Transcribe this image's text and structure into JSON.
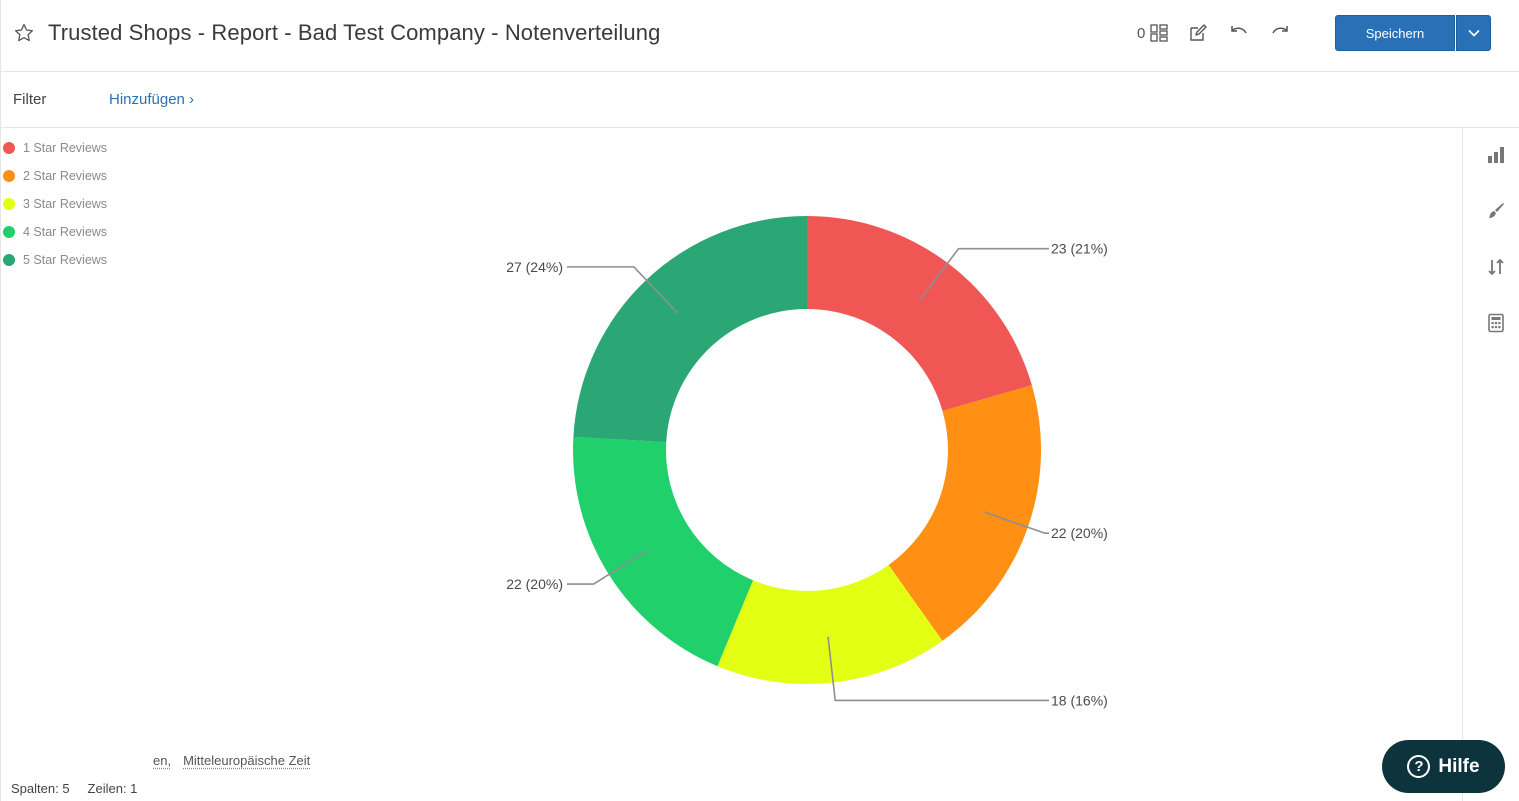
{
  "header": {
    "title": "Trusted Shops - Report - Bad Test Company - Notenverteilung",
    "widget_count": "0",
    "save_label": "Speichern"
  },
  "filter": {
    "label": "Filter",
    "add_label": "Hinzufügen ›"
  },
  "chart_data": {
    "type": "pie",
    "donut": true,
    "title": "",
    "legend_position": "top-left",
    "categories": [
      "1 Star Reviews",
      "2 Star Reviews",
      "3 Star Reviews",
      "4 Star Reviews",
      "5 Star Reviews"
    ],
    "values": [
      23,
      22,
      18,
      22,
      27
    ],
    "percents": [
      "21%",
      "20%",
      "16%",
      "20%",
      "24%"
    ],
    "labels": [
      "23 (21%)",
      "22 (20%)",
      "18 (16%)",
      "22 (20%)",
      "27 (24%)"
    ],
    "colors": [
      "#f05654",
      "#ff9014",
      "#e3ff14",
      "#1fd06b",
      "#2aa775"
    ]
  },
  "footer": {
    "tz_prefix": "en,",
    "timezone": "Mitteleuropäische Zeit",
    "columns": "Spalten: 5",
    "rows": "Zeilen: 1"
  },
  "help": {
    "label": "Hilfe",
    "glyph": "?"
  }
}
